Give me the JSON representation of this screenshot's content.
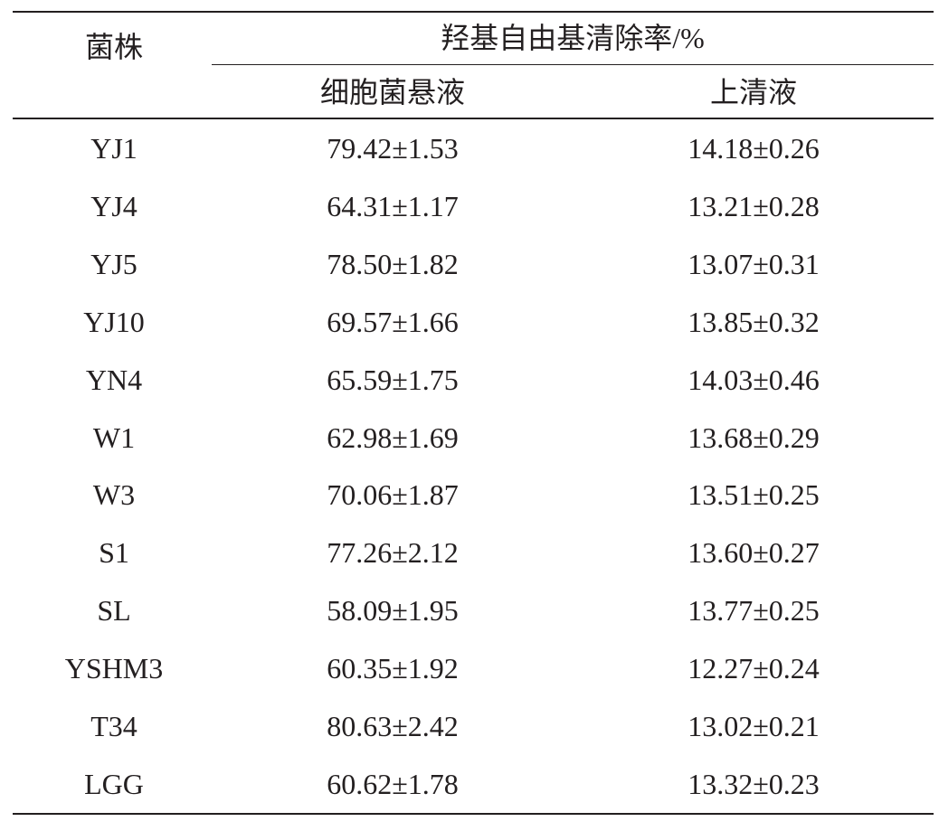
{
  "header": {
    "strain": "菌株",
    "group": "羟基自由基清除率/%",
    "cell_suspension": "细胞菌悬液",
    "supernatant": "上清液"
  },
  "rows": [
    {
      "strain": "YJ1",
      "cell": "79.42±1.53",
      "super": "14.18±0.26"
    },
    {
      "strain": "YJ4",
      "cell": "64.31±1.17",
      "super": "13.21±0.28"
    },
    {
      "strain": "YJ5",
      "cell": "78.50±1.82",
      "super": "13.07±0.31"
    },
    {
      "strain": "YJ10",
      "cell": "69.57±1.66",
      "super": "13.85±0.32"
    },
    {
      "strain": "YN4",
      "cell": "65.59±1.75",
      "super": "14.03±0.46"
    },
    {
      "strain": "W1",
      "cell": "62.98±1.69",
      "super": "13.68±0.29"
    },
    {
      "strain": "W3",
      "cell": "70.06±1.87",
      "super": "13.51±0.25"
    },
    {
      "strain": "S1",
      "cell": "77.26±2.12",
      "super": "13.60±0.27"
    },
    {
      "strain": "SL",
      "cell": "58.09±1.95",
      "super": "13.77±0.25"
    },
    {
      "strain": "YSHM3",
      "cell": "60.35±1.92",
      "super": "12.27±0.24"
    },
    {
      "strain": "T34",
      "cell": "80.63±2.42",
      "super": "13.02±0.21"
    },
    {
      "strain": "LGG",
      "cell": "60.62±1.78",
      "super": "13.32±0.23"
    }
  ]
}
